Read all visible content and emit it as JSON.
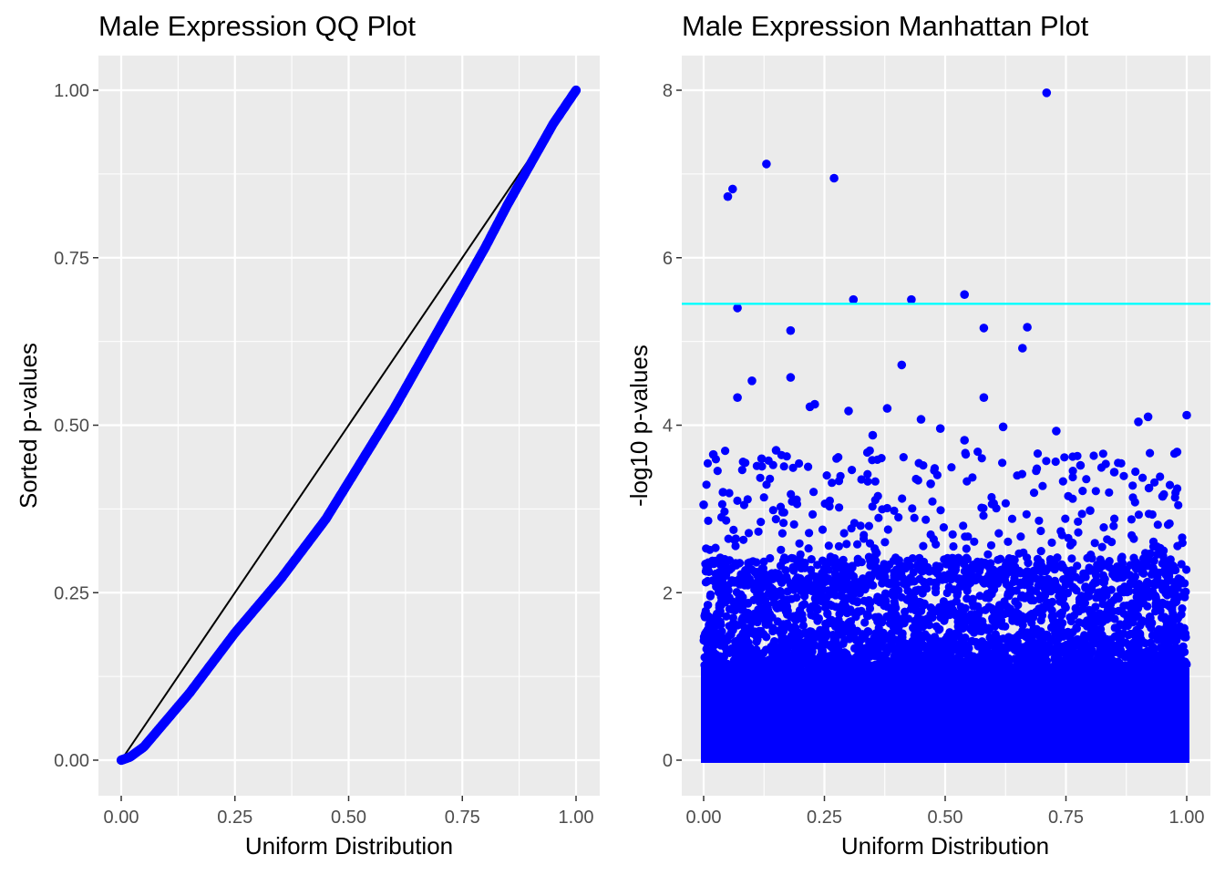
{
  "chart_data": [
    {
      "type": "scatter",
      "title": "Male Expression QQ Plot",
      "xlabel": "Uniform Distribution",
      "ylabel": "Sorted p-values",
      "xlim": [
        0,
        1
      ],
      "ylim": [
        0,
        1
      ],
      "xticks": [
        "0.00",
        "0.25",
        "0.50",
        "0.75",
        "1.00"
      ],
      "yticks": [
        "0.00",
        "0.25",
        "0.50",
        "0.75",
        "1.00"
      ],
      "grid": true,
      "point_color": "#0000ff",
      "reference_line": {
        "type": "identity",
        "color": "#000000"
      },
      "series": [
        {
          "x": [
            0.0,
            0.02,
            0.05,
            0.1,
            0.15,
            0.2,
            0.25,
            0.3,
            0.35,
            0.4,
            0.45,
            0.5,
            0.55,
            0.6,
            0.65,
            0.7,
            0.75,
            0.8,
            0.85,
            0.9,
            0.95,
            0.98,
            1.0
          ],
          "y": [
            0.0,
            0.005,
            0.02,
            0.06,
            0.1,
            0.145,
            0.19,
            0.23,
            0.27,
            0.315,
            0.36,
            0.415,
            0.47,
            0.525,
            0.585,
            0.645,
            0.705,
            0.765,
            0.83,
            0.89,
            0.95,
            0.98,
            1.0
          ]
        }
      ]
    },
    {
      "type": "scatter",
      "title": "Male Expression Manhattan Plot",
      "xlabel": "Uniform Distribution",
      "ylabel": "-log10 p-values",
      "xlim": [
        0,
        1
      ],
      "ylim": [
        0,
        8
      ],
      "xticks": [
        "0.00",
        "0.25",
        "0.50",
        "0.75",
        "1.00"
      ],
      "yticks": [
        "0",
        "2",
        "4",
        "6",
        "8"
      ],
      "grid": true,
      "point_color": "#0000ff",
      "threshold_line": {
        "y": 5.45,
        "color": "#00ffff"
      },
      "series": [
        {
          "x": [
            0.71,
            0.13,
            0.27,
            0.06,
            0.05,
            0.54,
            0.31,
            0.43,
            0.07,
            0.58,
            0.67,
            0.18,
            0.66,
            0.41,
            0.58,
            0.18,
            0.1,
            0.07,
            0.23,
            0.22,
            0.3,
            0.38,
            0.45,
            0.49,
            0.54,
            0.62,
            0.73,
            0.92,
            0.9,
            1.0,
            0.98,
            0.0,
            0.85,
            0.78,
            0.04,
            0.02,
            0.35,
            0.8,
            0.95,
            0.12,
            0.15,
            0.47
          ],
          "y": [
            7.97,
            7.12,
            6.95,
            6.82,
            6.73,
            5.56,
            5.5,
            5.5,
            5.4,
            5.16,
            5.17,
            5.13,
            4.92,
            4.72,
            4.33,
            4.57,
            4.53,
            4.33,
            4.25,
            4.22,
            4.17,
            4.2,
            4.07,
            3.96,
            3.82,
            3.98,
            3.93,
            4.1,
            4.04,
            4.12,
            3.68,
            3.05,
            3.44,
            3.52,
            3.2,
            3.65,
            3.88,
            2.98,
            3.15,
            3.6,
            3.7,
            3.3
          ]
        }
      ],
      "bulk_density": {
        "below": 1.1,
        "dense_up_to": 2.3,
        "sparse_up_to": 3.7
      }
    }
  ]
}
